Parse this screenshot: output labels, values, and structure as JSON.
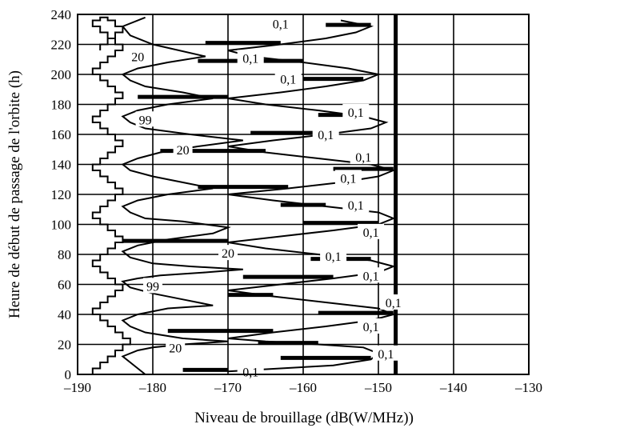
{
  "chart_data": {
    "type": "line",
    "xlabel": "Niveau de brouillage (dB(W/MHz))",
    "ylabel": "Heure de début de passage de l'orbite (h)",
    "xlim": [
      -190,
      -130
    ],
    "ylim": [
      0,
      240
    ],
    "x_ticks": [
      "–190",
      "–180",
      "–170",
      "–160",
      "–150",
      "–140",
      "–130"
    ],
    "y_ticks": [
      "0",
      "20",
      "40",
      "60",
      "80",
      "100",
      "120",
      "140",
      "160",
      "180",
      "200",
      "220",
      "240"
    ],
    "grid": true,
    "vertical_reference_x": -147.7,
    "series": [
      {
        "x": [
          -188,
          -188,
          -187,
          -187,
          -186,
          -186,
          -185,
          -185,
          -184,
          -184,
          -183,
          -183,
          -184,
          -184,
          -185,
          -185,
          -186,
          -186,
          -187,
          -187,
          -188,
          -188,
          -187,
          -187,
          -186,
          -186,
          -185,
          -185,
          -184,
          -184,
          -185,
          -185,
          -186,
          -186,
          -187,
          -187,
          -188,
          -188,
          -187,
          -187,
          -186,
          -186,
          -185,
          -185,
          -184,
          -184,
          -185,
          -185,
          -186,
          -186,
          -187,
          -187,
          -188,
          -188,
          -187,
          -187,
          -186,
          -186,
          -185,
          -185,
          -184,
          -184,
          -185,
          -185,
          -186,
          -186,
          -187,
          -187,
          -188,
          -188,
          -187,
          -187,
          -186,
          -186,
          -185,
          -185,
          -184,
          -184,
          -185,
          -185,
          -186,
          -186,
          -187,
          -187,
          -188,
          -188,
          -187,
          -187,
          -186,
          -186,
          -185,
          -185,
          -184,
          -184,
          -185,
          -185,
          -186,
          -186,
          -187,
          -187,
          -188,
          -188,
          -187,
          -187,
          -186,
          -186,
          -185,
          -185,
          -184,
          -184,
          -185,
          -185,
          -186,
          -186,
          -187,
          -187,
          -188,
          -188,
          -187,
          -187,
          -186,
          -186,
          -185,
          -185,
          -184,
          -184,
          -185,
          -185,
          -186,
          -186,
          -187,
          -187
        ],
        "y": [
          0,
          4,
          4,
          8,
          8,
          12,
          12,
          16,
          16,
          20,
          20,
          24,
          24,
          28,
          28,
          32,
          32,
          36,
          36,
          40,
          40,
          44,
          44,
          48,
          48,
          52,
          52,
          56,
          56,
          60,
          60,
          64,
          64,
          68,
          68,
          72,
          72,
          76,
          76,
          80,
          80,
          84,
          84,
          88,
          88,
          92,
          92,
          96,
          96,
          100,
          100,
          104,
          104,
          108,
          108,
          112,
          112,
          116,
          116,
          120,
          120,
          124,
          124,
          128,
          128,
          132,
          132,
          136,
          136,
          140,
          140,
          144,
          144,
          148,
          148,
          152,
          152,
          156,
          156,
          160,
          160,
          164,
          164,
          168,
          168,
          172,
          172,
          176,
          176,
          180,
          180,
          184,
          184,
          188,
          188,
          192,
          192,
          196,
          196,
          200,
          200,
          204,
          204,
          208,
          208,
          212,
          212,
          216,
          216,
          220,
          220,
          224,
          224,
          228,
          228,
          232,
          232,
          236,
          236,
          238,
          238,
          236,
          236,
          232,
          232,
          228,
          228,
          224,
          224,
          220,
          220,
          216
        ]
      },
      {
        "x": [
          -181,
          -182,
          -183,
          -184,
          -182,
          -180,
          -176,
          -170,
          -176,
          -181,
          -183,
          -184,
          -182,
          -178,
          -172,
          -176,
          -180,
          -183,
          -184,
          -182,
          -179,
          -173,
          -168,
          -175,
          -180,
          -183,
          -184,
          -182,
          -178,
          -172,
          -170,
          -176,
          -181,
          -183,
          -184,
          -182,
          -178,
          -172,
          -176,
          -180,
          -183,
          -184,
          -182,
          -179,
          -174,
          -168,
          -175,
          -181,
          -183,
          -184,
          -182,
          -178,
          -172,
          -176,
          -181,
          -183,
          -184,
          -182,
          -178,
          -173,
          -180,
          -183,
          -184,
          -181
        ],
        "y": [
          0,
          4,
          8,
          12,
          16,
          18,
          20,
          22,
          24,
          28,
          32,
          36,
          40,
          44,
          46,
          50,
          54,
          58,
          62,
          64,
          66,
          68,
          70,
          72,
          74,
          78,
          82,
          86,
          90,
          94,
          98,
          102,
          104,
          108,
          112,
          116,
          120,
          124,
          128,
          132,
          136,
          140,
          144,
          148,
          152,
          156,
          160,
          164,
          168,
          172,
          176,
          180,
          184,
          188,
          192,
          196,
          200,
          204,
          208,
          212,
          220,
          226,
          232,
          238
        ]
      },
      {
        "x": [
          -170,
          -163,
          -156,
          -151,
          -150,
          -152,
          -158,
          -165,
          -170,
          -164,
          -157,
          -151,
          -148,
          -150,
          -157,
          -164,
          -170,
          -163,
          -156,
          -150,
          -148,
          -151,
          -158,
          -165,
          -170,
          -163,
          -156,
          -150,
          -148,
          -150,
          -157,
          -164,
          -170,
          -162,
          -155,
          -150,
          -148,
          -151,
          -158,
          -165,
          -170,
          -164,
          -157,
          -151,
          -149,
          -152,
          -158,
          -165,
          -170,
          -163,
          -157,
          -152,
          -150,
          -154,
          -160,
          -167,
          -170,
          -163,
          -157,
          -153,
          -151,
          -155
        ],
        "y": [
          2,
          4,
          6,
          10,
          14,
          18,
          20,
          22,
          24,
          28,
          32,
          36,
          40,
          44,
          48,
          52,
          56,
          60,
          64,
          68,
          72,
          76,
          80,
          84,
          88,
          92,
          96,
          100,
          104,
          108,
          112,
          116,
          120,
          124,
          128,
          132,
          136,
          140,
          144,
          148,
          152,
          156,
          160,
          164,
          168,
          172,
          176,
          180,
          184,
          188,
          192,
          196,
          200,
          204,
          208,
          212,
          216,
          220,
          224,
          228,
          232,
          236
        ]
      }
    ],
    "contour_labels": [
      {
        "text": "99",
        "x": -181,
        "y": 170
      },
      {
        "text": "99",
        "x": -180,
        "y": 59
      },
      {
        "text": "20",
        "x": -182,
        "y": 212
      },
      {
        "text": "20",
        "x": -176,
        "y": 150
      },
      {
        "text": "20",
        "x": -170,
        "y": 81
      },
      {
        "text": "20",
        "x": -177,
        "y": 18
      },
      {
        "text": "0,1",
        "x": -163,
        "y": 234
      },
      {
        "text": "0,1",
        "x": -167,
        "y": 211
      },
      {
        "text": "0,1",
        "x": -162,
        "y": 197
      },
      {
        "text": "0,1",
        "x": -153,
        "y": 175
      },
      {
        "text": "0,1",
        "x": -157,
        "y": 160
      },
      {
        "text": "0,1",
        "x": -152,
        "y": 145
      },
      {
        "text": "0,1",
        "x": -154,
        "y": 131
      },
      {
        "text": "0,1",
        "x": -153,
        "y": 113
      },
      {
        "text": "0,1",
        "x": -151,
        "y": 95
      },
      {
        "text": "0,1",
        "x": -156,
        "y": 79
      },
      {
        "text": "0,1",
        "x": -151,
        "y": 66
      },
      {
        "text": "0,1",
        "x": -148,
        "y": 48
      },
      {
        "text": "0,1",
        "x": -151,
        "y": 32
      },
      {
        "text": "0,1",
        "x": -149,
        "y": 14
      },
      {
        "text": "0,1",
        "x": -167,
        "y": 2
      }
    ]
  }
}
